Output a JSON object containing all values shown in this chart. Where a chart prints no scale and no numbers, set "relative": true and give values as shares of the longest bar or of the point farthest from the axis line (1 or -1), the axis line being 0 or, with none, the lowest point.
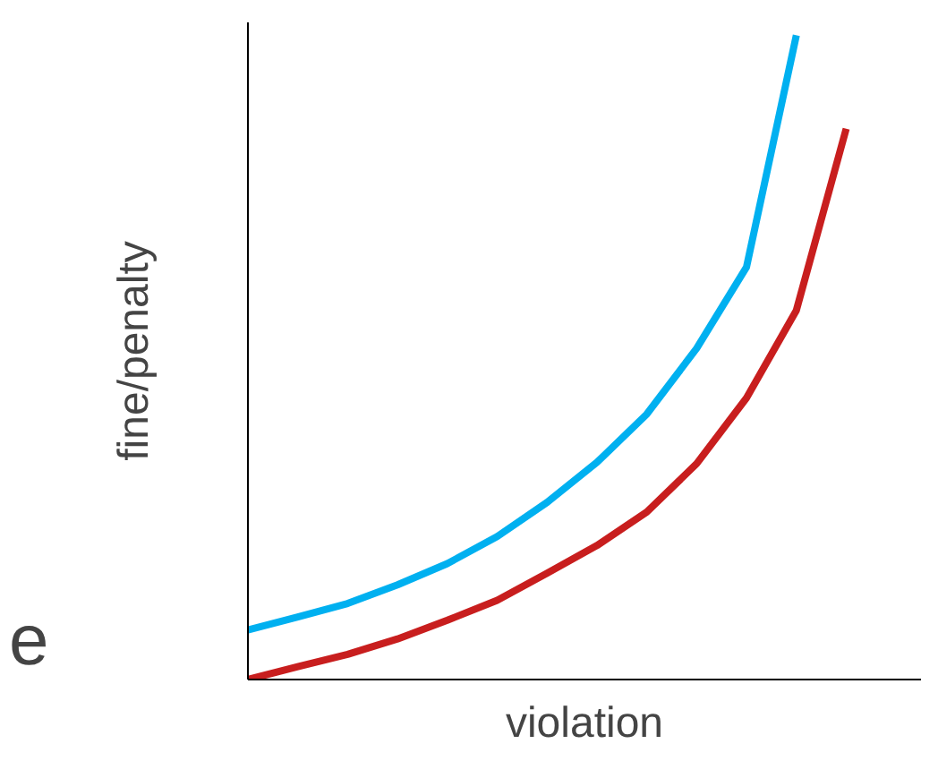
{
  "chart_data": {
    "type": "line",
    "relative": true,
    "xlabel": "violation",
    "ylabel": "fine/penalty",
    "annotations": [
      "e"
    ],
    "categories": [
      null,
      null,
      null,
      null,
      null,
      null,
      null,
      null,
      null,
      null,
      null,
      null,
      null
    ],
    "series": [
      {
        "color": "#00b0f0",
        "values": [
          0.077,
          0.097,
          0.118,
          0.147,
          0.18,
          0.222,
          0.275,
          0.337,
          0.412,
          0.514,
          0.64,
          1.0,
          null
        ]
      },
      {
        "color": "#c81e1e",
        "values": [
          0,
          0.02,
          0.039,
          0.063,
          0.092,
          0.123,
          0.165,
          0.208,
          0.26,
          0.335,
          0.437,
          0.573,
          0.855
        ]
      }
    ],
    "line_style": "solid"
  }
}
